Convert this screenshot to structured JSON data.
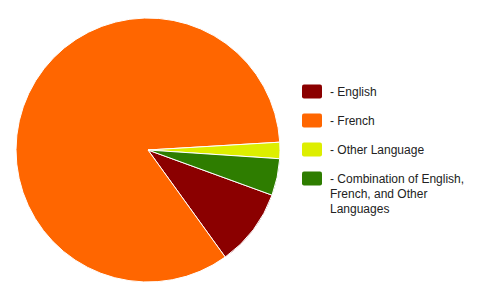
{
  "chart_data": {
    "type": "pie",
    "categories": [
      "- English",
      "- French",
      "- Other Language",
      "- Combination of English,\nFrench, and Other\nLanguages"
    ],
    "values": [
      9.5,
      84.0,
      2.0,
      4.5
    ],
    "colors": [
      "#8B0000",
      "#FF6600",
      "#DDEE00",
      "#2E7D00"
    ],
    "legend": "right"
  }
}
